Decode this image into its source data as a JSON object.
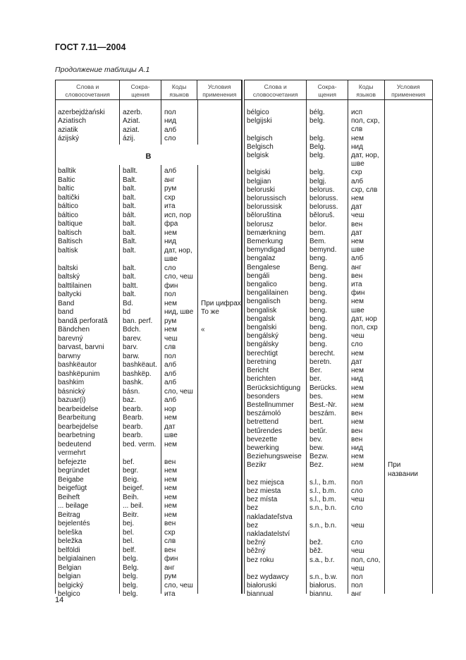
{
  "header": {
    "standard": "ГОСТ 7.11—2004",
    "caption": "Продолжение таблицы А.1"
  },
  "columns": [
    "Слова и\nсловосочетания",
    "Сокра-\nщения",
    "Коды\nязыков",
    "Условия\nприменения"
  ],
  "left": {
    "rows_a": [
      [
        "azerbejdżański",
        "azerb.",
        "пол",
        ""
      ],
      [
        "Aziatisch",
        "Aziat.",
        "нид",
        ""
      ],
      [
        "aziatik",
        "aziat.",
        "алб",
        ""
      ],
      [
        "ázijský",
        "ázij.",
        "сло",
        ""
      ]
    ],
    "heading": "B",
    "rows_b": [
      [
        "balltik",
        "ballt.",
        "алб",
        ""
      ],
      [
        "Baltic",
        "Balt.",
        "анг",
        ""
      ],
      [
        "baltic",
        "balt.",
        "рум",
        ""
      ],
      [
        "baltički",
        "balt.",
        "схр",
        ""
      ],
      [
        "báltico",
        "balt.",
        "ита",
        ""
      ],
      [
        "báltico",
        "bált.",
        "исп, пор",
        ""
      ],
      [
        "baltique",
        "balt.",
        "фра",
        ""
      ],
      [
        "baltisch",
        "balt.",
        "нем",
        ""
      ],
      [
        "Baltisch",
        "Balt.",
        "нид",
        ""
      ],
      [
        "baltisk",
        "balt.",
        "дат, нор,\nшве",
        ""
      ],
      [
        "baltski",
        "balt.",
        "сло",
        ""
      ],
      [
        "baltský",
        "balt.",
        "сло, чеш",
        ""
      ],
      [
        "balttilainen",
        "baltt.",
        "фин",
        ""
      ],
      [
        "baltycki",
        "balt.",
        "пол",
        ""
      ],
      [
        "Band",
        "Bd.",
        "нем",
        "При цифрах"
      ],
      [
        "band",
        "bd",
        "нид, шве",
        "То же"
      ],
      [
        "bandă perforată",
        "ban. perf.",
        "рум",
        ""
      ],
      [
        "Bändchen",
        "Bdch.",
        "нем",
        "    «"
      ],
      [
        "barevný",
        "barev.",
        "чеш",
        ""
      ],
      [
        "barvast, barvni",
        "barv.",
        "слв",
        ""
      ],
      [
        "barwny",
        "barw.",
        "пол",
        ""
      ],
      [
        "bashkëautor",
        "bashkëaut.",
        "алб",
        ""
      ],
      [
        "bashkëpunim",
        "bashkëp.",
        "алб",
        ""
      ],
      [
        "bashkim",
        "bashk.",
        "алб",
        ""
      ],
      [
        "básnický",
        "básn.",
        "сло, чеш",
        ""
      ],
      [
        "bazuar(i)",
        "baz.",
        "алб",
        ""
      ],
      [
        "bearbeidelse",
        "bearb.",
        "нор",
        ""
      ],
      [
        "Bearbeitung",
        "Bearb.",
        "нем",
        ""
      ],
      [
        "bearbejdelse",
        "bearb.",
        "дат",
        ""
      ],
      [
        "bearbetning",
        "bearb.",
        "шве",
        ""
      ],
      [
        "bedeutend\nvermehrt",
        "bed. verm.",
        "нем",
        ""
      ],
      [
        "befejezte",
        "bef.",
        "вен",
        ""
      ],
      [
        "begründet",
        "begr.",
        "нем",
        ""
      ],
      [
        "Beigabe",
        "Beig.",
        "нем",
        ""
      ],
      [
        "beigefügt",
        "beigef.",
        "нем",
        ""
      ],
      [
        "Beiheft",
        "Beih.",
        "нем",
        ""
      ],
      [
        "... beilage",
        "... beil.",
        "нем",
        ""
      ],
      [
        "Beitrag",
        "Beitr.",
        "нем",
        ""
      ],
      [
        "bejelentés",
        "bej.",
        "вен",
        ""
      ],
      [
        "beleška",
        "bel.",
        "схр",
        ""
      ],
      [
        "beležka",
        "bel.",
        "слв",
        ""
      ],
      [
        "belföldi",
        "belf.",
        "вен",
        ""
      ],
      [
        "belgialainen",
        "belg.",
        "фин",
        ""
      ],
      [
        "Belgian",
        "Belg.",
        "анг",
        ""
      ],
      [
        "belgian",
        "belg.",
        "рум",
        ""
      ],
      [
        "belgický",
        "belg.",
        "сло, чеш",
        ""
      ],
      [
        "belgico",
        "belg.",
        "ита",
        ""
      ]
    ]
  },
  "right": {
    "rows": [
      [
        "bélgico",
        "bélg.",
        "исп",
        ""
      ],
      [
        "belgijski",
        "belg.",
        "пол, схр,\nслв",
        ""
      ],
      [
        "belgisch",
        "belg.",
        "нем",
        ""
      ],
      [
        "Belgisch",
        "Belg.",
        "нид",
        ""
      ],
      [
        "belgisk",
        "belg.",
        "дат, нор,\nшве",
        ""
      ],
      [
        "belgiski",
        "belg.",
        "схр",
        ""
      ],
      [
        "belgjian",
        "belgj.",
        "алб",
        ""
      ],
      [
        "beloruski",
        "belorus.",
        "схр, слв",
        ""
      ],
      [
        "belorussisch",
        "beloruss.",
        "нем",
        ""
      ],
      [
        "belorussisk",
        "beloruss.",
        "дат",
        ""
      ],
      [
        "běloruština",
        "běloruš.",
        "чеш",
        ""
      ],
      [
        "belorusz",
        "belor.",
        "вен",
        ""
      ],
      [
        "bemærkning",
        "bem.",
        "дат",
        ""
      ],
      [
        "Bemerkung",
        "Bem.",
        "нем",
        ""
      ],
      [
        "bemyndigad",
        "bemynd.",
        "шве",
        ""
      ],
      [
        "bengalaz",
        "beng.",
        "алб",
        ""
      ],
      [
        "Bengalese",
        "Beng.",
        "анг",
        ""
      ],
      [
        "bengáli",
        "beng.",
        "вен",
        ""
      ],
      [
        "bengalico",
        "beng.",
        "ита",
        ""
      ],
      [
        "bengalilainen",
        "beng.",
        "фин",
        ""
      ],
      [
        "bengalisch",
        "beng.",
        "нем",
        ""
      ],
      [
        "bengalisk",
        "beng.",
        "шве",
        ""
      ],
      [
        "bengalsk",
        "beng.",
        "дат, нор",
        ""
      ],
      [
        "bengalski",
        "beng.",
        "пол, схр",
        ""
      ],
      [
        "bengálský",
        "beng.",
        "чеш",
        ""
      ],
      [
        "bengálsky",
        "beng.",
        "сло",
        ""
      ],
      [
        "berechtigt",
        "berecht.",
        "нем",
        ""
      ],
      [
        "beretning",
        "beretn.",
        "дат",
        ""
      ],
      [
        "Bericht",
        "Ber.",
        "нем",
        ""
      ],
      [
        "berichten",
        "ber.",
        "нид",
        ""
      ],
      [
        "Berücksichtigung",
        "Berücks.",
        "нем",
        ""
      ],
      [
        "besonders",
        "bes.",
        "нем",
        ""
      ],
      [
        "Bestellnummer",
        "Best.-Nr.",
        "нем",
        ""
      ],
      [
        "beszámoló",
        "beszám.",
        "вен",
        ""
      ],
      [
        "betrettend",
        "bert.",
        "нем",
        ""
      ],
      [
        "betűrendes",
        "betűr.",
        "вен",
        ""
      ],
      [
        "bevezette",
        "bev.",
        "вен",
        ""
      ],
      [
        "bewerking",
        "bew.",
        "нид",
        ""
      ],
      [
        "Beziehungsweise",
        "Bezw.",
        "нем",
        ""
      ],
      [
        "Bezikr",
        "Bez.",
        "нем",
        "При названии"
      ],
      [
        "bez miejsca",
        "s.l., b.m.",
        "пол",
        ""
      ],
      [
        "bez miesta",
        "s.l., b.m.",
        "сло",
        ""
      ],
      [
        "bez místa",
        "s.l., b.m.",
        "чеш",
        ""
      ],
      [
        "bez\nnakladateľstva",
        "s.n., b.n.",
        "сло",
        ""
      ],
      [
        "bez\nnakladatelství",
        "s.n., b.n.",
        "чеш",
        ""
      ],
      [
        "bežný",
        "bež.",
        "сло",
        ""
      ],
      [
        "běžný",
        "běž.",
        "чеш",
        ""
      ],
      [
        "bez roku",
        "s.a., b.r.",
        "пол, сло,\nчеш",
        ""
      ],
      [
        "bez wydawcy",
        "s.n., b.w.",
        "пол",
        ""
      ],
      [
        "białoruski",
        "białorus.",
        "пол",
        ""
      ],
      [
        "biannual",
        "biannu.",
        "анг",
        ""
      ]
    ]
  },
  "page_number": "14"
}
